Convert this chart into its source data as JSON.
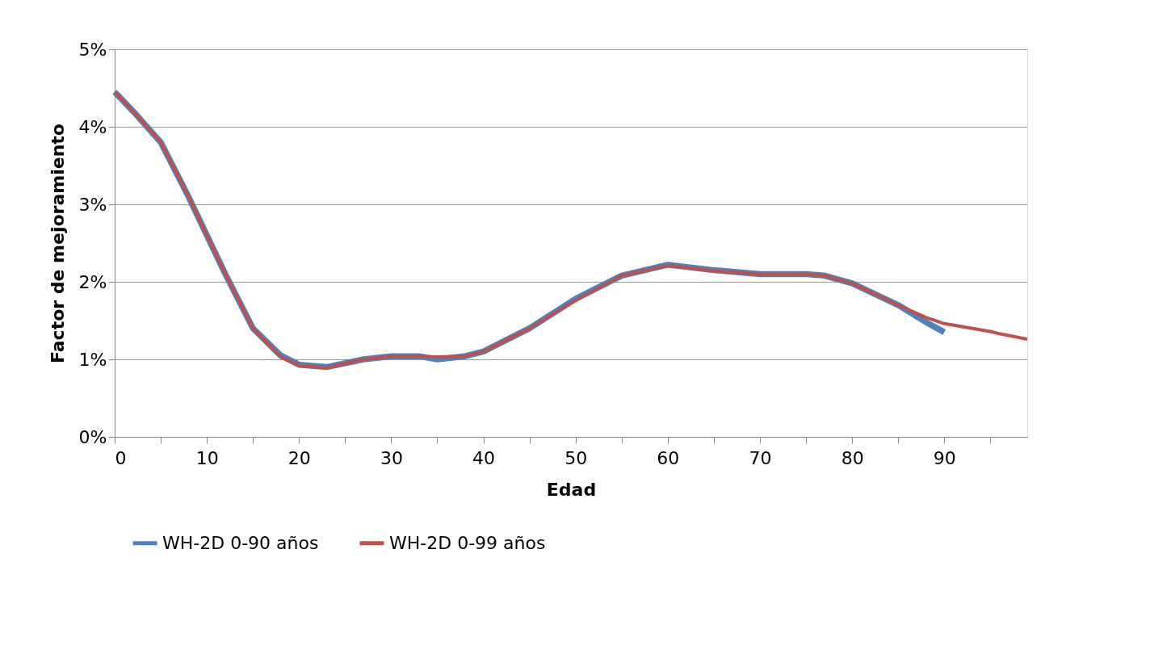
{
  "chart_data": {
    "type": "line",
    "xlabel": "Edad",
    "ylabel": "Factor de mejoramiento",
    "xlim": [
      0,
      99
    ],
    "xticks": [
      0,
      {
        "value": 5,
        "label": null
      },
      10,
      {
        "value": 15,
        "label": null
      },
      20,
      {
        "value": 25,
        "label": null
      },
      30,
      {
        "value": 35,
        "label": null
      },
      40,
      {
        "value": 45,
        "label": null
      },
      50,
      {
        "value": 55,
        "label": null
      },
      60,
      {
        "value": 65,
        "label": null
      },
      70,
      {
        "value": 75,
        "label": null
      },
      80,
      {
        "value": 85,
        "label": null
      },
      90,
      {
        "value": 95,
        "label": null
      }
    ],
    "ylim": [
      0,
      5
    ],
    "yticks": [
      {
        "value": 0,
        "label": "0%"
      },
      {
        "value": 1,
        "label": "1%"
      },
      {
        "value": 2,
        "label": "2%"
      },
      {
        "value": 3,
        "label": "3%"
      },
      {
        "value": 4,
        "label": "4%"
      },
      {
        "value": 5,
        "label": "5%"
      }
    ],
    "grid": "y",
    "legend": "bottom",
    "marker": "none",
    "line_style": "solid",
    "series": [
      {
        "name": "WH-2D 0-90 años",
        "color": "#4f81bd",
        "x": [
          0,
          2,
          5,
          8,
          10,
          12,
          15,
          18,
          20,
          23,
          27,
          30,
          33,
          35,
          38,
          40,
          45,
          50,
          55,
          60,
          65,
          70,
          75,
          77,
          80,
          85,
          88,
          90
        ],
        "values": [
          4.45,
          4.2,
          3.8,
          3.1,
          2.6,
          2.1,
          1.4,
          1.05,
          0.93,
          0.9,
          1.0,
          1.04,
          1.04,
          1.0,
          1.04,
          1.1,
          1.4,
          1.78,
          2.08,
          2.22,
          2.15,
          2.1,
          2.1,
          2.08,
          1.98,
          1.7,
          1.48,
          1.35
        ]
      },
      {
        "name": "WH-2D 0-99 años",
        "color": "#c0504d",
        "x": [
          0,
          2,
          5,
          8,
          10,
          12,
          15,
          18,
          20,
          23,
          27,
          30,
          33,
          35,
          38,
          40,
          45,
          50,
          55,
          60,
          65,
          70,
          75,
          77,
          80,
          85,
          88,
          90,
          95,
          96,
          99
        ],
        "values": [
          4.45,
          4.2,
          3.8,
          3.1,
          2.6,
          2.1,
          1.4,
          1.03,
          0.92,
          0.89,
          1.0,
          1.04,
          1.04,
          1.03,
          1.04,
          1.1,
          1.4,
          1.76,
          2.08,
          2.21,
          2.14,
          2.1,
          2.1,
          2.08,
          1.98,
          1.7,
          1.54,
          1.46,
          1.36,
          1.33,
          1.26
        ]
      }
    ]
  }
}
